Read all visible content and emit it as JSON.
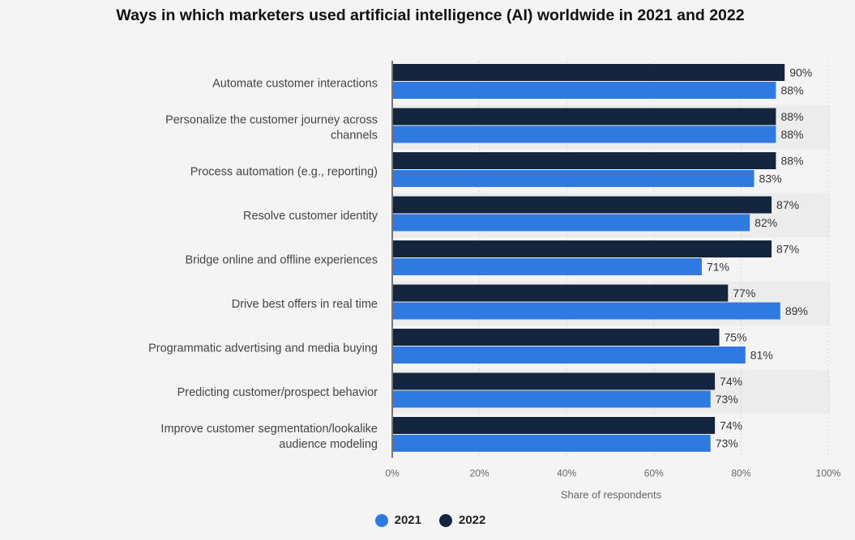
{
  "chart_data": {
    "type": "bar",
    "orientation": "horizontal",
    "title": "Ways in which marketers used artificial intelligence (AI) worldwide in 2021 and 2022",
    "xlabel": "Share of respondents",
    "ylabel": "",
    "xlim": [
      0,
      100
    ],
    "x_ticks": [
      "0%",
      "20%",
      "40%",
      "60%",
      "80%",
      "100%"
    ],
    "value_suffix": "%",
    "grid": "vertical",
    "legend_position": "bottom-center",
    "categories": [
      [
        "Automate customer interactions"
      ],
      [
        "Personalize the customer journey across",
        "channels"
      ],
      [
        "Process automation (e.g., reporting)"
      ],
      [
        "Resolve customer identity"
      ],
      [
        "Bridge online and offline experiences"
      ],
      [
        "Drive best offers in real time"
      ],
      [
        "Programmatic advertising and media buying"
      ],
      [
        "Predicting customer/prospect behavior"
      ],
      [
        "Improve customer segmentation/lookalike",
        "audience modeling"
      ]
    ],
    "series": [
      {
        "name": "2022",
        "color": "#13253f",
        "values": [
          90,
          88,
          88,
          87,
          87,
          77,
          75,
          74,
          74
        ]
      },
      {
        "name": "2021",
        "color": "#2f7ae0",
        "values": [
          88,
          88,
          83,
          82,
          71,
          89,
          81,
          73,
          73
        ]
      }
    ],
    "legend": [
      {
        "name": "2021",
        "color": "#2f7ae0"
      },
      {
        "name": "2022",
        "color": "#13253f"
      }
    ]
  }
}
